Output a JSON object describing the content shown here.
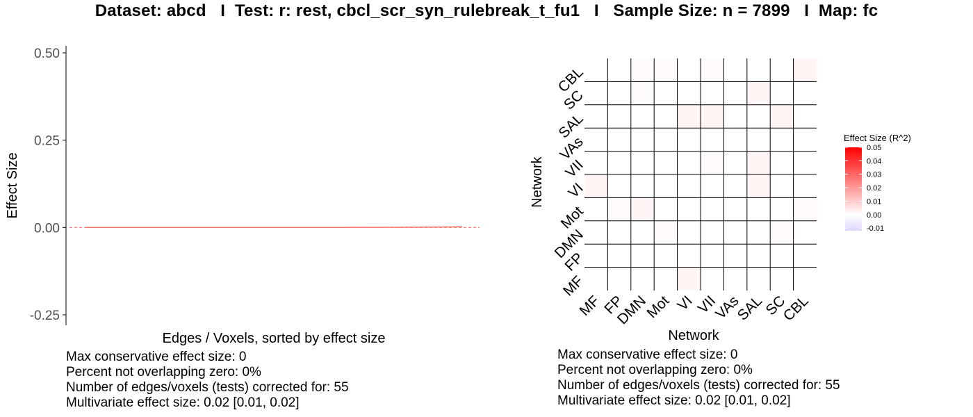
{
  "title": "Dataset: abcd   I  Test: r: rest, cbcl_scr_syn_rulebreak_t_fu1   I   Sample Size: n = 7899   I  Map: fc",
  "colors": {
    "line": "#F8766D",
    "zero_line": "#F8766D",
    "gradient_high": "#FF0000",
    "gradient_mid": "#FFFFFF",
    "gradient_low": "#E0D4FF",
    "grid": "#000000"
  },
  "chart_data": [
    {
      "type": "line",
      "xlabel": "Edges / Voxels, sorted by effect size",
      "ylabel": "Effect Size",
      "ylim": [
        -0.28,
        0.52
      ],
      "yticks": [
        -0.25,
        0.0,
        0.25,
        0.5
      ],
      "ytick_labels": [
        "-0.25",
        "0.00",
        "0.25",
        "0.50"
      ],
      "n_points": 55,
      "series": [
        {
          "values_first": 0.0,
          "values_last": 0.002
        }
      ],
      "zero_line": 0,
      "grid": false
    },
    {
      "type": "heatmap",
      "xlabel": "Network",
      "ylabel": "Network",
      "categories": [
        "MF",
        "FP",
        "DMN",
        "Mot",
        "VI",
        "VII",
        "VAs",
        "SAL",
        "SC",
        "CBL"
      ],
      "legend_title": "Effect Size (R^2)",
      "legend_ticks": [
        0.05,
        0.04,
        0.03,
        0.02,
        0.01,
        0.0,
        -0.01
      ],
      "legend_tick_labels": [
        "0.05",
        "0.04",
        "0.03",
        "0.02",
        "0.01",
        "0.00",
        "-0.01"
      ],
      "legend_range": [
        -0.012,
        0.05
      ],
      "legend_position": "right",
      "values": [
        [
          0.0,
          0.0,
          0.0,
          0.0,
          0.002,
          0.0,
          0.0,
          0.0,
          0.0,
          0.0
        ],
        [
          0.0,
          0.0,
          0.0,
          0.0,
          0.0,
          0.0,
          0.0,
          0.0,
          0.0,
          0.0
        ],
        [
          0.0,
          0.0,
          0.0,
          0.001,
          0.0,
          0.0,
          0.0,
          0.0,
          0.001,
          0.0
        ],
        [
          0.0,
          0.001,
          0.002,
          0.0,
          0.0,
          0.0,
          0.0,
          0.0,
          0.0,
          0.001
        ],
        [
          0.002,
          0.0,
          0.0,
          0.0,
          0.0,
          0.0,
          0.0,
          0.002,
          0.0,
          0.0
        ],
        [
          0.0,
          0.0,
          0.0,
          0.0,
          0.0,
          0.001,
          0.0,
          0.002,
          0.0,
          0.0
        ],
        [
          0.0,
          0.0,
          0.0,
          0.0,
          0.0,
          0.0,
          0.0,
          0.0,
          0.0,
          0.0
        ],
        [
          0.0,
          0.0,
          0.0,
          0.0,
          0.002,
          0.002,
          0.0,
          0.0,
          0.002,
          0.0
        ],
        [
          0.0,
          0.0,
          0.001,
          0.0,
          0.0,
          0.0,
          0.0,
          0.002,
          0.0,
          0.0
        ],
        [
          0.0,
          0.0,
          0.001,
          0.001,
          0.0,
          0.001,
          0.0,
          0.0,
          0.0,
          0.002
        ]
      ]
    }
  ],
  "stats_left": [
    "Max conservative effect size: 0",
    "Percent not overlapping zero: 0%",
    "Number of edges/voxels (tests) corrected for: 55",
    "Multivariate effect size: 0.02 [0.01, 0.02]"
  ],
  "stats_right": [
    "Max conservative effect size: 0",
    "Percent not overlapping zero: 0%",
    "Number of edges/voxels (tests) corrected for: 55",
    "Multivariate effect size: 0.02 [0.01, 0.02]"
  ]
}
